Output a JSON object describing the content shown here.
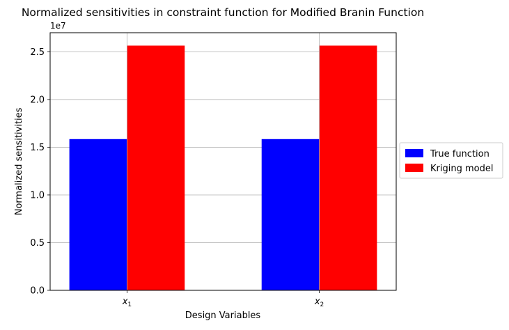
{
  "chart_data": {
    "type": "bar",
    "title": "Normalized sensitivities in constraint function for Modified Branin Function",
    "xlabel": "Design Variables",
    "ylabel": "Normalized sensitivities",
    "y_offset_label": "1e7",
    "y_scale": 10000000,
    "categories": [
      "x1",
      "x2"
    ],
    "category_labels": [
      {
        "base": "x",
        "sub": "1"
      },
      {
        "base": "x",
        "sub": "2"
      }
    ],
    "series": [
      {
        "name": "True function",
        "color": "#0000ff",
        "values": [
          15850000,
          15850000
        ]
      },
      {
        "name": "Kriging model",
        "color": "#ff0000",
        "values": [
          25650000,
          25650000
        ]
      }
    ],
    "ylim": [
      0,
      27000000
    ],
    "y_ticks": [
      {
        "value": 0,
        "label": "0.0"
      },
      {
        "value": 5000000,
        "label": "0.5"
      },
      {
        "value": 10000000,
        "label": "1.0"
      },
      {
        "value": 15000000,
        "label": "1.5"
      },
      {
        "value": 20000000,
        "label": "2.0"
      },
      {
        "value": 25000000,
        "label": "2.5"
      }
    ],
    "grid": true,
    "legend_position": "right, outside plot"
  }
}
